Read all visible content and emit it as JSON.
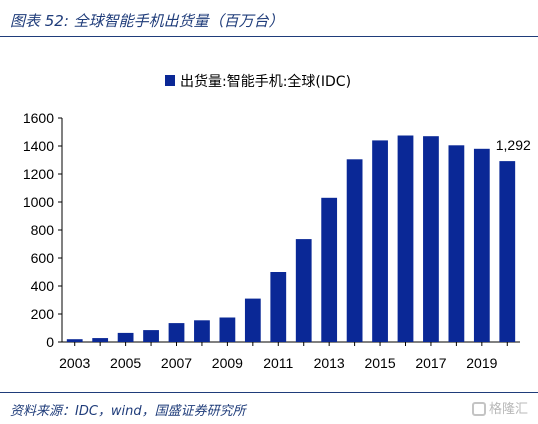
{
  "figure": {
    "title": "图表 52:  全球智能手机出货量（百万台）",
    "source": "资料来源：IDC，wind，国盛证券研究所"
  },
  "watermark": {
    "text": "格隆汇"
  },
  "chart_data": {
    "type": "bar",
    "legend": {
      "label": "出货量:智能手机:全球(IDC)",
      "position": "top-center"
    },
    "color": "#0a2896",
    "categories": [
      "2003",
      "2004",
      "2005",
      "2006",
      "2007",
      "2008",
      "2009",
      "2010",
      "2011",
      "2012",
      "2013",
      "2014",
      "2015",
      "2016",
      "2017",
      "2018",
      "2019",
      "2020"
    ],
    "x_tick_labels": [
      "2003",
      "2005",
      "2007",
      "2009",
      "2011",
      "2013",
      "2015",
      "2017",
      "2019"
    ],
    "values": [
      20,
      28,
      65,
      85,
      135,
      155,
      175,
      310,
      500,
      735,
      1030,
      1305,
      1440,
      1475,
      1470,
      1405,
      1380,
      1292
    ],
    "ylim": [
      0,
      1600
    ],
    "yticks": [
      0,
      200,
      400,
      600,
      800,
      1000,
      1200,
      1400,
      1600
    ],
    "grid": false,
    "annotations": [
      {
        "category": "2020",
        "text": "1,292"
      }
    ]
  }
}
